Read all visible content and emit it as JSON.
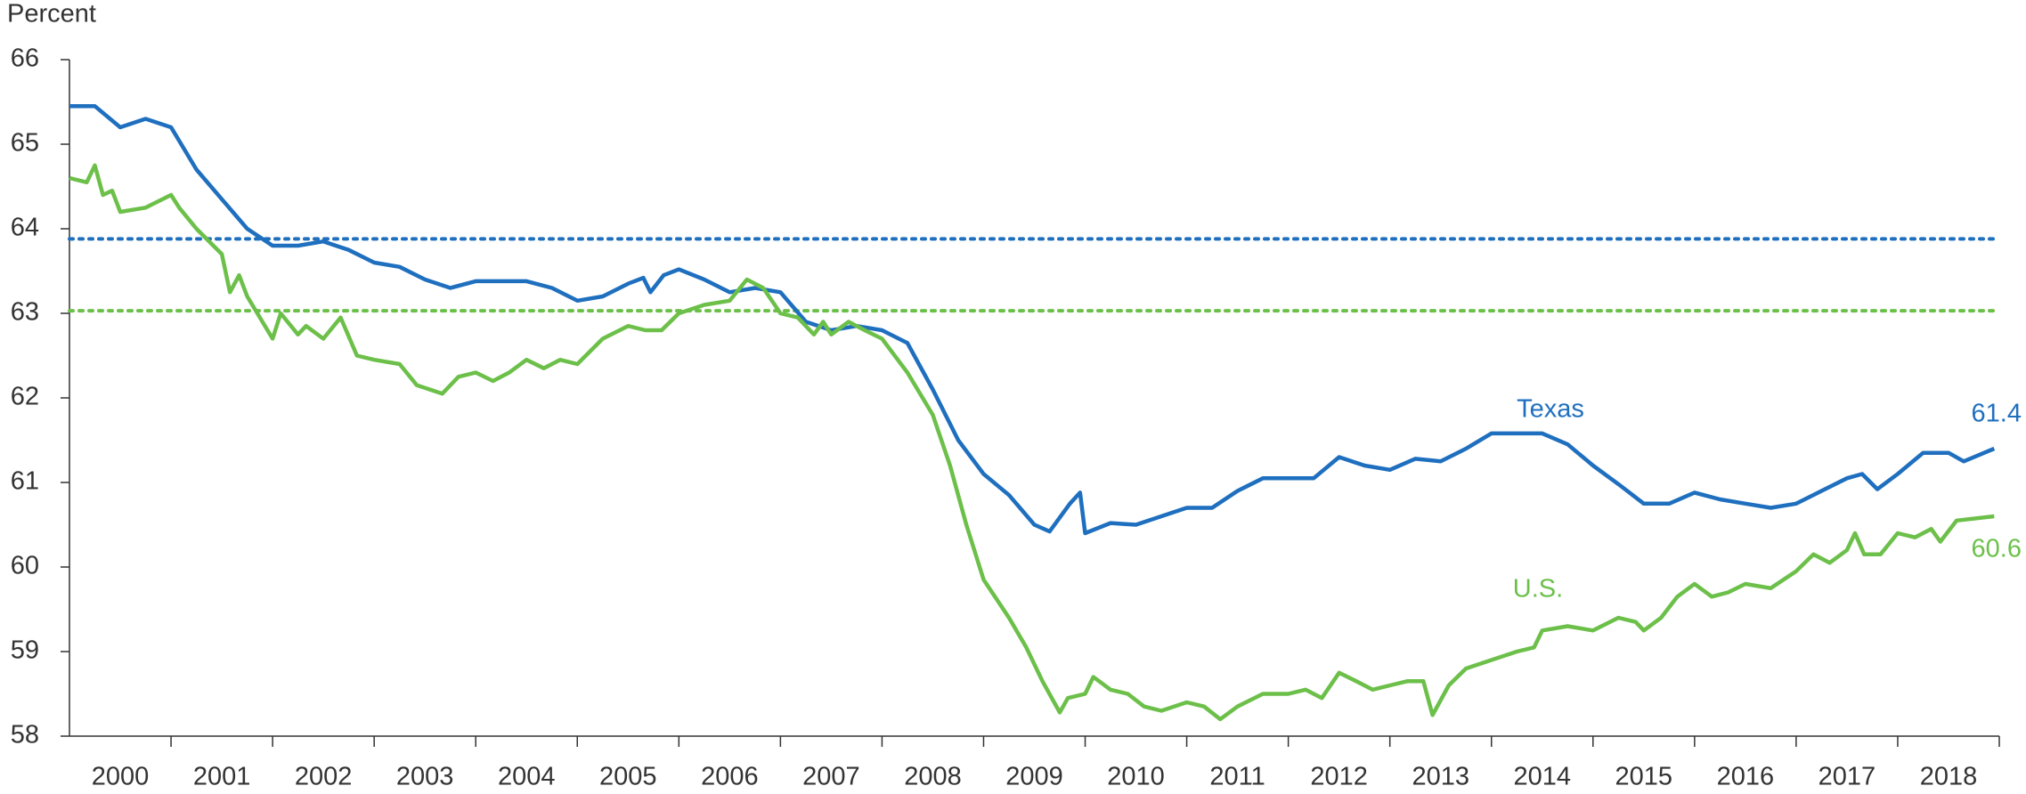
{
  "chart_data": {
    "type": "line",
    "y_axis_label": "Percent",
    "xlim": [
      2000,
      2019
    ],
    "xticks": [
      {
        "value": 2000.5,
        "label": "2000"
      },
      {
        "value": 2001.5,
        "label": "2001"
      },
      {
        "value": 2002.5,
        "label": "2002"
      },
      {
        "value": 2003.5,
        "label": "2003"
      },
      {
        "value": 2004.5,
        "label": "2004"
      },
      {
        "value": 2005.5,
        "label": "2005"
      },
      {
        "value": 2006.5,
        "label": "2006"
      },
      {
        "value": 2007.5,
        "label": "2007"
      },
      {
        "value": 2008.5,
        "label": "2008"
      },
      {
        "value": 2009.5,
        "label": "2009"
      },
      {
        "value": 2010.5,
        "label": "2010"
      },
      {
        "value": 2011.5,
        "label": "2011"
      },
      {
        "value": 2012.5,
        "label": "2012"
      },
      {
        "value": 2013.5,
        "label": "2013"
      },
      {
        "value": 2014.5,
        "label": "2014"
      },
      {
        "value": 2015.5,
        "label": "2015"
      },
      {
        "value": 2016.5,
        "label": "2016"
      },
      {
        "value": 2017.5,
        "label": "2017"
      },
      {
        "value": 2018.5,
        "label": "2018"
      }
    ],
    "ylim": [
      58,
      66
    ],
    "yticks": [
      58,
      59,
      60,
      61,
      62,
      63,
      64,
      65,
      66
    ],
    "label_last": true,
    "reference_lines": [
      {
        "value": 63.88,
        "color": "#1f6fbf"
      },
      {
        "value": 63.03,
        "color": "#6cc04a"
      }
    ],
    "series": [
      {
        "name": "Texas",
        "color": "#1f6fbf",
        "x": [
          2000.0,
          2000.25,
          2000.5,
          2000.75,
          2001.0,
          2001.25,
          2001.5,
          2001.75,
          2002.0,
          2002.25,
          2002.5,
          2002.75,
          2003.0,
          2003.25,
          2003.5,
          2003.75,
          2004.0,
          2004.25,
          2004.5,
          2004.75,
          2005.0,
          2005.25,
          2005.5,
          2005.65,
          2005.72,
          2005.85,
          2006.0,
          2006.25,
          2006.5,
          2006.75,
          2007.0,
          2007.25,
          2007.5,
          2007.75,
          2008.0,
          2008.25,
          2008.5,
          2008.75,
          2009.0,
          2009.25,
          2009.5,
          2009.65,
          2009.85,
          2009.95,
          2010.0,
          2010.25,
          2010.5,
          2010.75,
          2011.0,
          2011.25,
          2011.5,
          2011.75,
          2012.0,
          2012.25,
          2012.5,
          2012.75,
          2013.0,
          2013.25,
          2013.5,
          2013.75,
          2014.0,
          2014.25,
          2014.5,
          2014.75,
          2015.0,
          2015.25,
          2015.5,
          2015.75,
          2016.0,
          2016.25,
          2016.5,
          2016.75,
          2017.0,
          2017.25,
          2017.5,
          2017.65,
          2017.8,
          2018.0,
          2018.25,
          2018.5,
          2018.65,
          2018.95
        ],
        "values": [
          65.45,
          65.45,
          65.2,
          65.3,
          65.2,
          64.7,
          64.35,
          64.0,
          63.8,
          63.8,
          63.85,
          63.75,
          63.6,
          63.55,
          63.4,
          63.3,
          63.38,
          63.38,
          63.38,
          63.3,
          63.15,
          63.2,
          63.35,
          63.42,
          63.25,
          63.45,
          63.52,
          63.4,
          63.25,
          63.3,
          63.25,
          62.9,
          62.8,
          62.85,
          62.8,
          62.65,
          62.1,
          61.5,
          61.1,
          60.85,
          60.5,
          60.42,
          60.75,
          60.88,
          60.4,
          60.52,
          60.5,
          60.6,
          60.7,
          60.7,
          60.9,
          61.05,
          61.05,
          61.05,
          61.3,
          61.2,
          61.15,
          61.28,
          61.25,
          61.4,
          61.58,
          61.58,
          61.58,
          61.45,
          61.2,
          60.98,
          60.75,
          60.75,
          60.88,
          60.8,
          60.75,
          60.7,
          60.75,
          60.9,
          61.05,
          61.1,
          60.92,
          61.1,
          61.35,
          61.35,
          61.25,
          61.4
        ]
      },
      {
        "name": "U.S.",
        "color": "#6cc04a",
        "x": [
          2000.0,
          2000.17,
          2000.25,
          2000.33,
          2000.42,
          2000.5,
          2000.75,
          2001.0,
          2001.08,
          2001.25,
          2001.5,
          2001.58,
          2001.67,
          2001.75,
          2002.0,
          2002.08,
          2002.25,
          2002.33,
          2002.5,
          2002.67,
          2002.83,
          2003.0,
          2003.25,
          2003.42,
          2003.67,
          2003.83,
          2004.0,
          2004.17,
          2004.33,
          2004.5,
          2004.67,
          2004.83,
          2005.0,
          2005.25,
          2005.5,
          2005.67,
          2005.83,
          2006.0,
          2006.25,
          2006.5,
          2006.67,
          2006.83,
          2007.0,
          2007.17,
          2007.33,
          2007.42,
          2007.5,
          2007.67,
          2007.83,
          2008.0,
          2008.25,
          2008.5,
          2008.67,
          2008.83,
          2009.0,
          2009.25,
          2009.42,
          2009.58,
          2009.75,
          2009.83,
          2010.0,
          2010.08,
          2010.25,
          2010.42,
          2010.58,
          2010.75,
          2011.0,
          2011.17,
          2011.33,
          2011.5,
          2011.75,
          2012.0,
          2012.17,
          2012.33,
          2012.5,
          2012.67,
          2012.83,
          2013.0,
          2013.17,
          2013.33,
          2013.42,
          2013.58,
          2013.75,
          2014.0,
          2014.25,
          2014.42,
          2014.5,
          2014.75,
          2015.0,
          2015.25,
          2015.42,
          2015.5,
          2015.67,
          2015.83,
          2016.0,
          2016.17,
          2016.33,
          2016.5,
          2016.75,
          2017.0,
          2017.17,
          2017.33,
          2017.5,
          2017.58,
          2017.67,
          2017.83,
          2018.0,
          2018.17,
          2018.33,
          2018.42,
          2018.58,
          2018.95
        ],
        "values": [
          64.6,
          64.55,
          64.75,
          64.4,
          64.45,
          64.2,
          64.25,
          64.4,
          64.25,
          64.0,
          63.7,
          63.25,
          63.45,
          63.2,
          62.7,
          63.0,
          62.75,
          62.85,
          62.7,
          62.95,
          62.5,
          62.45,
          62.4,
          62.15,
          62.05,
          62.25,
          62.3,
          62.2,
          62.3,
          62.45,
          62.35,
          62.45,
          62.4,
          62.7,
          62.85,
          62.8,
          62.8,
          63.0,
          63.1,
          63.15,
          63.4,
          63.3,
          63.0,
          62.95,
          62.75,
          62.9,
          62.75,
          62.9,
          62.8,
          62.7,
          62.3,
          61.8,
          61.2,
          60.5,
          59.85,
          59.4,
          59.05,
          58.65,
          58.28,
          58.45,
          58.5,
          58.7,
          58.55,
          58.5,
          58.35,
          58.3,
          58.4,
          58.35,
          58.2,
          58.35,
          58.5,
          58.5,
          58.55,
          58.45,
          58.75,
          58.65,
          58.55,
          58.6,
          58.65,
          58.65,
          58.25,
          58.6,
          58.8,
          58.9,
          59.0,
          59.05,
          59.25,
          59.3,
          59.25,
          59.4,
          59.35,
          59.25,
          59.4,
          59.65,
          59.8,
          59.65,
          59.7,
          59.8,
          59.75,
          59.95,
          60.15,
          60.05,
          60.2,
          60.4,
          60.15,
          60.15,
          60.4,
          60.35,
          60.45,
          60.3,
          60.55,
          60.6
        ]
      }
    ]
  }
}
